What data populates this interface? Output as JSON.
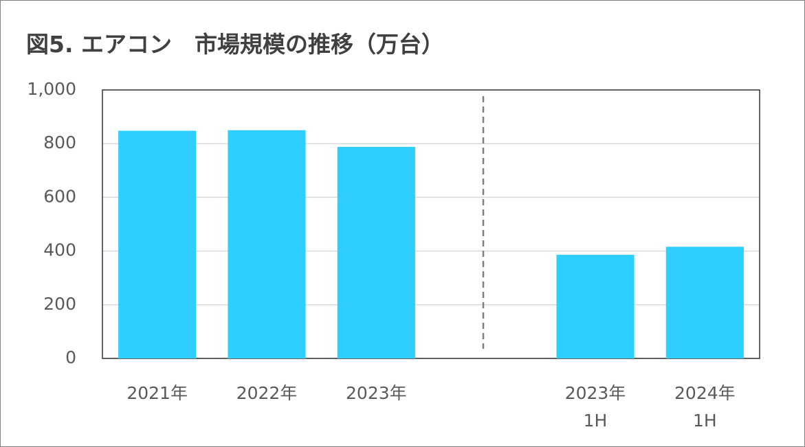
{
  "chart_data": {
    "type": "bar",
    "title": "図5. エアコン　市場規模の推移（万台）",
    "categories": [
      "2021年",
      "2022年",
      "2023年",
      null,
      "2023年\n1H",
      "2024年\n1H"
    ],
    "values": [
      848,
      850,
      788,
      null,
      386,
      416
    ],
    "color": "#2ecfff",
    "ylim": [
      0,
      1000
    ],
    "yticks": [
      0,
      200,
      400,
      600,
      800,
      {
        "value": 1000,
        "label": "1,000"
      }
    ],
    "grid": true
  }
}
